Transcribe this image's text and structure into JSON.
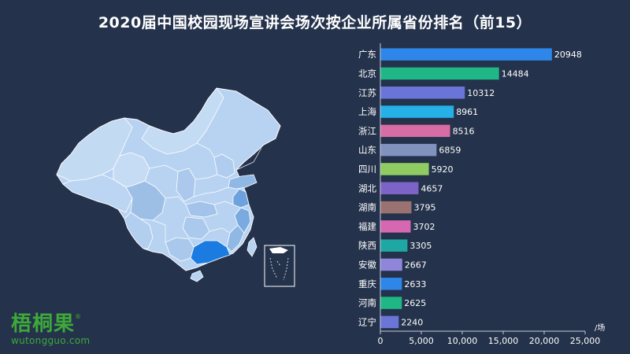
{
  "title": "2020届中国校园现场宣讲会场次按企业所属省份排名（前15）",
  "logo": {
    "text_cn": "梧桐果",
    "reg_mark": "®",
    "url": "wutongguo.com"
  },
  "chart_data": {
    "type": "bar",
    "orientation": "horizontal",
    "title": "2020届中国校园现场宣讲会场次按企业所属省份排名（前15）",
    "categories": [
      "广东",
      "北京",
      "江苏",
      "上海",
      "浙江",
      "山东",
      "四川",
      "湖北",
      "湖南",
      "福建",
      "陕西",
      "安徽",
      "重庆",
      "河南",
      "辽宁"
    ],
    "values": [
      20948,
      14484,
      10312,
      8961,
      8516,
      6859,
      5920,
      4657,
      3795,
      3702,
      3305,
      2667,
      2633,
      2625,
      2240
    ],
    "value_labels": [
      "20948",
      "14484",
      "10312",
      "8961",
      "8516",
      "6859",
      "5920",
      "4657",
      "3795",
      "3702",
      "3305",
      "2667",
      "2633",
      "2625",
      "2240"
    ],
    "colors": [
      "#2e86e8",
      "#20b787",
      "#6b75d8",
      "#26b0e8",
      "#d86ca4",
      "#8292bf",
      "#8fcd63",
      "#7e63c6",
      "#9a7272",
      "#d668b1",
      "#1fa7a4",
      "#8f86da",
      "#2e86e8",
      "#20b787",
      "#6b75d8"
    ],
    "x_ticks": [
      0,
      5000,
      10000,
      15000,
      20000,
      25000
    ],
    "x_tick_labels": [
      "0",
      "5,000",
      "10,000",
      "15,000",
      "20,000",
      "25,000"
    ],
    "xlim": [
      0,
      25000
    ],
    "unit_label": "/场",
    "grid": false,
    "legend": "none"
  },
  "map": {
    "type": "choropleth",
    "highlight_colors": {
      "top": "#1b7be0",
      "high": "#4d9ee6",
      "mid": "#8fb8e4",
      "low": "#b8d3f1"
    }
  }
}
